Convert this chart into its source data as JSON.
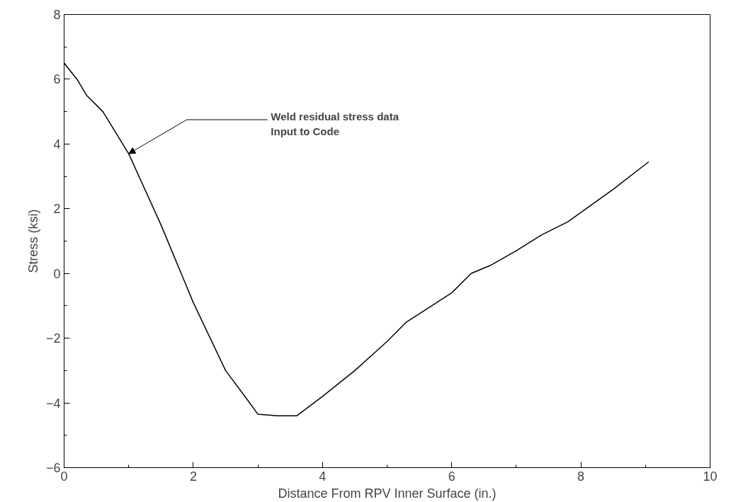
{
  "chart_data": {
    "type": "line",
    "xlabel": "Distance From RPV Inner Surface (in.)",
    "ylabel": "Stress (ksi)",
    "x": [
      0,
      0.2,
      0.35,
      0.6,
      1.0,
      1.5,
      2.0,
      2.5,
      2.8,
      3.0,
      3.3,
      3.6,
      4.0,
      4.5,
      5.0,
      5.3,
      6.0,
      6.3,
      6.6,
      7.0,
      7.4,
      7.8,
      8.5,
      9.05
    ],
    "values": [
      6.5,
      6.0,
      5.5,
      5.0,
      3.7,
      1.5,
      -0.9,
      -3.0,
      -3.8,
      -4.35,
      -4.4,
      -4.4,
      -3.8,
      -3.0,
      -2.1,
      -1.5,
      -0.6,
      0.0,
      0.25,
      0.7,
      1.2,
      1.6,
      2.6,
      3.45
    ],
    "color": "#000000",
    "line_style": "solid",
    "marker": "none",
    "grid": false,
    "xlim": [
      0,
      10
    ],
    "ylim": [
      -6,
      8
    ],
    "xticks": [
      0,
      2,
      4,
      6,
      8,
      10
    ],
    "yticks": [
      -6,
      -4,
      -2,
      0,
      2,
      4,
      6,
      8
    ],
    "annotations": [
      {
        "text": "Weld residual stress data\nInput to Code",
        "x": 1.0,
        "y": 3.7
      }
    ]
  }
}
